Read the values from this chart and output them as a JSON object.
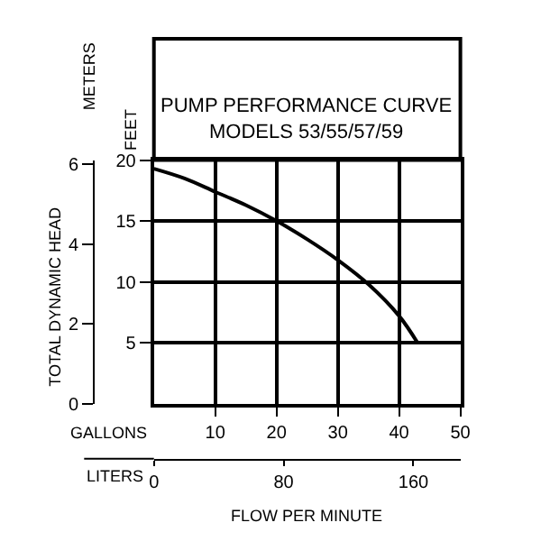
{
  "chart_data": {
    "type": "line",
    "title": "PUMP PERFORMANCE CURVE",
    "subtitle": "MODELS 53/55/57/59",
    "xlabel": "GALLONS",
    "x2label": "LITERS",
    "ylabel": "FEET",
    "y2label": "METERS",
    "annotations": [
      "TOTAL DYNAMIC HEAD",
      "FLOW PER MINUTE"
    ],
    "x": [
      0,
      5,
      10,
      15,
      20,
      25,
      30,
      35,
      40,
      43
    ],
    "series": [
      {
        "color": "#000000",
        "values": [
          19.3,
          18.5,
          17.4,
          16.3,
          15.0,
          13.5,
          11.8,
          9.8,
          7.2,
          5.0
        ]
      }
    ],
    "xlim": [
      0,
      50
    ],
    "xticks": [
      10,
      20,
      30,
      40,
      50
    ],
    "x2lim": [
      0,
      189
    ],
    "x2ticks": [
      0,
      80,
      160
    ],
    "ylim": [
      0,
      20
    ],
    "yticks": [
      5,
      10,
      15,
      20
    ],
    "y2lim": [
      0,
      6.1
    ],
    "y2ticks": [
      0,
      2,
      4,
      6
    ],
    "grid": true,
    "marker": "none",
    "line_style": "solid"
  }
}
